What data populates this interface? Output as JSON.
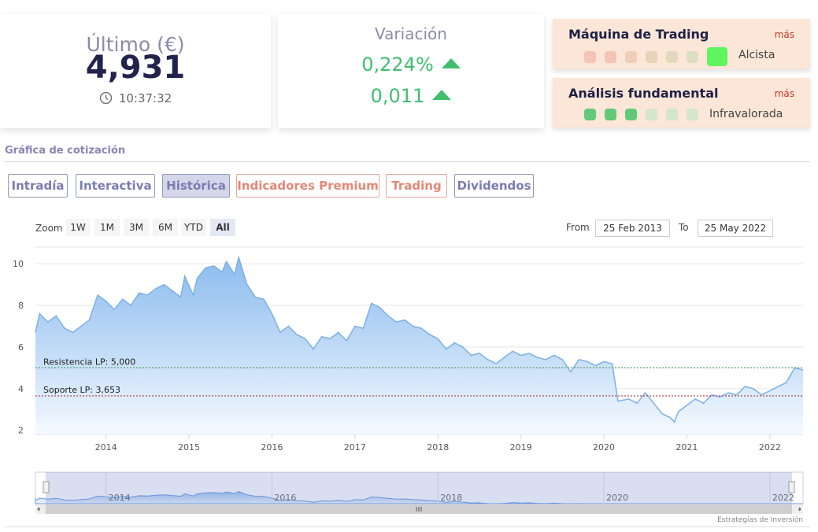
{
  "quote": {
    "last_label": "Último (€)",
    "last_value": "4,931",
    "time": "10:37:32",
    "variation_label": "Variación",
    "variation_pct": "0,224%",
    "variation_abs": "0,011"
  },
  "trading_machine": {
    "title": "Máquina de Trading",
    "more": "más",
    "status": "Alcista",
    "active_level": 7,
    "dot_colors": [
      "#f7c3b4",
      "#f4c5b4",
      "#efcdb7",
      "#e8d3b9",
      "#e2d9bd",
      "#dde0c0",
      "#5ef55e"
    ]
  },
  "fundamental": {
    "title": "Análisis fundamental",
    "more": "más",
    "status": "Infravalorada",
    "dot_colors": [
      "#62c97a",
      "#62c97a",
      "#62c97a",
      "#d4e6cc",
      "#d4e6cc",
      "#d4e6cc"
    ]
  },
  "section_title": "Gráfica de cotización",
  "tabs": [
    {
      "label": "Intradía",
      "style": "normal"
    },
    {
      "label": "Interactiva",
      "style": "normal"
    },
    {
      "label": "Histórica",
      "style": "active"
    },
    {
      "label": "Indicadores Premium",
      "style": "premium"
    },
    {
      "label": "Trading",
      "style": "premium"
    },
    {
      "label": "Dividendos",
      "style": "normal"
    }
  ],
  "zoom": {
    "label": "Zoom",
    "buttons": [
      "1W",
      "1M",
      "3M",
      "6M",
      "YTD",
      "All"
    ],
    "selected": "All",
    "from_label": "From",
    "from_value": "25 Feb 2013",
    "to_label": "To",
    "to_value": "25 May 2022"
  },
  "chart_data": {
    "type": "area",
    "title": "",
    "xlabel": "",
    "ylabel": "",
    "x_ticks": [
      "2014",
      "2015",
      "2016",
      "2017",
      "2018",
      "2019",
      "2020",
      "2021",
      "2022"
    ],
    "y_ticks": [
      "2",
      "4",
      "6",
      "8",
      "10"
    ],
    "ylim": [
      1.8,
      10.8
    ],
    "xlim": [
      2013.15,
      2022.4
    ],
    "grid": true,
    "series": [
      {
        "points": [
          [
            2013.15,
            6.7
          ],
          [
            2013.2,
            7.6
          ],
          [
            2013.3,
            7.2
          ],
          [
            2013.4,
            7.5
          ],
          [
            2013.5,
            6.9
          ],
          [
            2013.6,
            6.7
          ],
          [
            2013.7,
            7.0
          ],
          [
            2013.8,
            7.3
          ],
          [
            2013.9,
            8.5
          ],
          [
            2014.0,
            8.2
          ],
          [
            2014.1,
            7.8
          ],
          [
            2014.2,
            8.3
          ],
          [
            2014.3,
            8.0
          ],
          [
            2014.4,
            8.6
          ],
          [
            2014.5,
            8.5
          ],
          [
            2014.6,
            8.8
          ],
          [
            2014.7,
            9.0
          ],
          [
            2014.8,
            8.7
          ],
          [
            2014.9,
            8.4
          ],
          [
            2014.95,
            9.4
          ],
          [
            2015.05,
            8.5
          ],
          [
            2015.1,
            9.3
          ],
          [
            2015.2,
            9.8
          ],
          [
            2015.3,
            9.9
          ],
          [
            2015.4,
            9.6
          ],
          [
            2015.45,
            10.1
          ],
          [
            2015.55,
            9.5
          ],
          [
            2015.6,
            10.3
          ],
          [
            2015.7,
            9.0
          ],
          [
            2015.8,
            8.4
          ],
          [
            2015.9,
            8.3
          ],
          [
            2016.0,
            7.6
          ],
          [
            2016.1,
            6.7
          ],
          [
            2016.2,
            7.0
          ],
          [
            2016.3,
            6.6
          ],
          [
            2016.4,
            6.4
          ],
          [
            2016.5,
            5.9
          ],
          [
            2016.6,
            6.5
          ],
          [
            2016.7,
            6.4
          ],
          [
            2016.8,
            6.7
          ],
          [
            2016.9,
            6.3
          ],
          [
            2017.0,
            7.0
          ],
          [
            2017.1,
            6.9
          ],
          [
            2017.2,
            8.1
          ],
          [
            2017.3,
            7.9
          ],
          [
            2017.4,
            7.5
          ],
          [
            2017.5,
            7.2
          ],
          [
            2017.6,
            7.3
          ],
          [
            2017.7,
            7.0
          ],
          [
            2017.8,
            6.9
          ],
          [
            2017.9,
            6.6
          ],
          [
            2018.0,
            6.4
          ],
          [
            2018.1,
            5.9
          ],
          [
            2018.2,
            6.2
          ],
          [
            2018.3,
            6.0
          ],
          [
            2018.4,
            5.6
          ],
          [
            2018.5,
            5.7
          ],
          [
            2018.6,
            5.4
          ],
          [
            2018.7,
            5.2
          ],
          [
            2018.8,
            5.5
          ],
          [
            2018.9,
            5.8
          ],
          [
            2019.0,
            5.6
          ],
          [
            2019.1,
            5.7
          ],
          [
            2019.2,
            5.5
          ],
          [
            2019.3,
            5.4
          ],
          [
            2019.4,
            5.6
          ],
          [
            2019.5,
            5.4
          ],
          [
            2019.6,
            4.8
          ],
          [
            2019.7,
            5.4
          ],
          [
            2019.8,
            5.3
          ],
          [
            2019.9,
            5.1
          ],
          [
            2020.0,
            5.3
          ],
          [
            2020.1,
            5.2
          ],
          [
            2020.17,
            3.4
          ],
          [
            2020.3,
            3.5
          ],
          [
            2020.4,
            3.3
          ],
          [
            2020.5,
            3.8
          ],
          [
            2020.6,
            3.3
          ],
          [
            2020.7,
            2.8
          ],
          [
            2020.8,
            2.6
          ],
          [
            2020.85,
            2.4
          ],
          [
            2020.9,
            2.9
          ],
          [
            2021.0,
            3.2
          ],
          [
            2021.1,
            3.5
          ],
          [
            2021.2,
            3.3
          ],
          [
            2021.3,
            3.7
          ],
          [
            2021.4,
            3.6
          ],
          [
            2021.5,
            3.8
          ],
          [
            2021.6,
            3.7
          ],
          [
            2021.7,
            4.1
          ],
          [
            2021.8,
            4.0
          ],
          [
            2021.9,
            3.7
          ],
          [
            2022.0,
            3.9
          ],
          [
            2022.1,
            4.1
          ],
          [
            2022.2,
            4.3
          ],
          [
            2022.3,
            5.0
          ],
          [
            2022.4,
            4.9
          ]
        ]
      }
    ],
    "annotations": [
      {
        "label": "Resistencia LP: 5,000",
        "value": 5.0,
        "color": "#2e8b3d"
      },
      {
        "label": "Soporte LP: 3,653",
        "value": 3.653,
        "color": "#a11d2b"
      }
    ],
    "navigator_ticks": [
      "2014",
      "2016",
      "2018",
      "2020",
      "2022"
    ]
  },
  "credits": "Estrategias de Inversión",
  "colors": {
    "line": "#7cb0e6",
    "area_top": "#8bbbee",
    "area_bottom": "#f4f9ff",
    "green": "#3fbf6c",
    "accent_purple": "#7a7db0",
    "premium": "#e38776"
  }
}
